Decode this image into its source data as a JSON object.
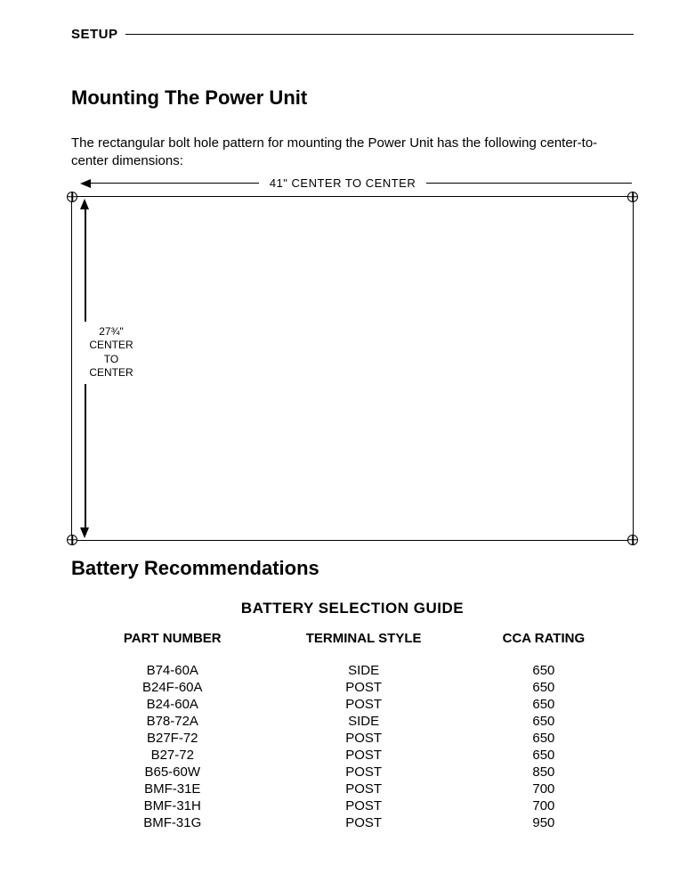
{
  "header": {
    "label": "SETUP"
  },
  "section1": {
    "title": "Mounting The Power Unit",
    "paragraph": "The rectangular bolt hole pattern for mounting the Power Unit has the following center-to-center dimensions:"
  },
  "diagram": {
    "width_label": "41\"   CENTER TO CENTER",
    "height_value": "27¾\"",
    "height_line1": "CENTER",
    "height_line2": "TO",
    "height_line3": "CENTER",
    "border_color": "#000000",
    "background_color": "#ffffff"
  },
  "section2": {
    "title": "Battery Recommendations"
  },
  "battery_table": {
    "type": "table",
    "title": "BATTERY SELECTION GUIDE",
    "columns": [
      "PART NUMBER",
      "TERMINAL STYLE",
      "CCA RATING"
    ],
    "rows": [
      [
        "B74-60A",
        "SIDE",
        "650"
      ],
      [
        "B24F-60A",
        "POST",
        "650"
      ],
      [
        "B24-60A",
        "POST",
        "650"
      ],
      [
        "B78-72A",
        "SIDE",
        "650"
      ],
      [
        "B27F-72",
        "POST",
        "650"
      ],
      [
        "B27-72",
        "POST",
        "650"
      ],
      [
        "B65-60W",
        "POST",
        "850"
      ],
      [
        "BMF-31E",
        "POST",
        "700"
      ],
      [
        "BMF-31H",
        "POST",
        "700"
      ],
      [
        "BMF-31G",
        "POST",
        "950"
      ]
    ]
  }
}
